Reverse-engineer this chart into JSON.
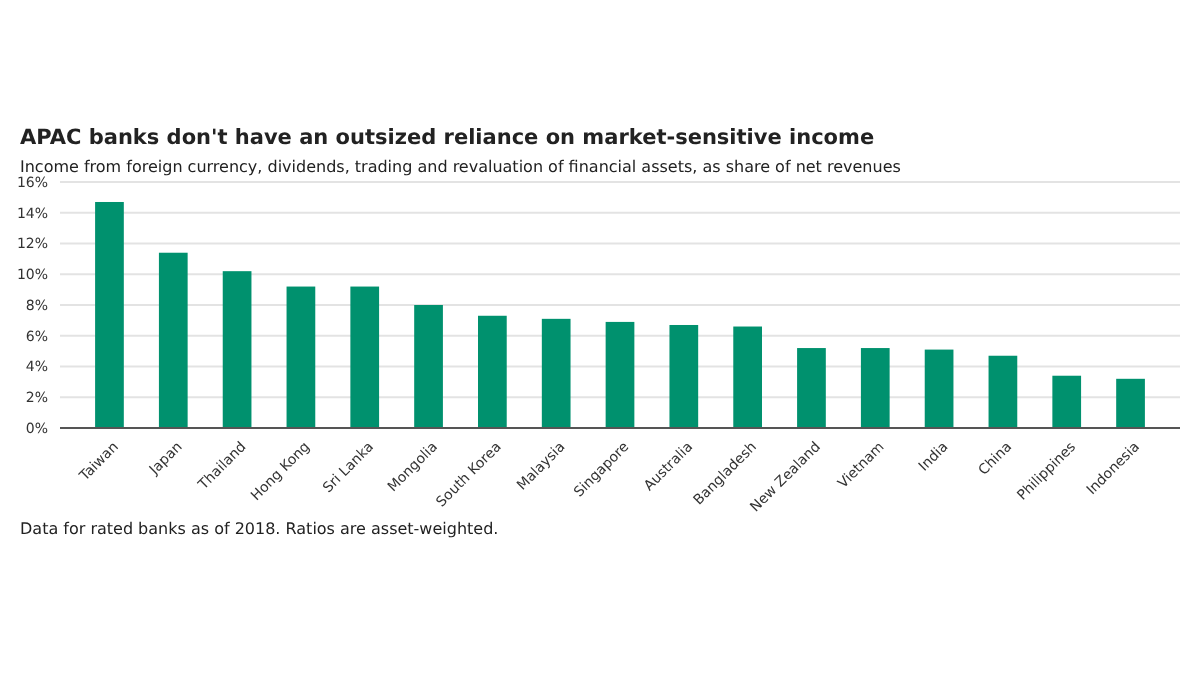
{
  "chart_data": {
    "type": "bar",
    "title": "APAC banks don't have an outsized reliance on market-sensitive income",
    "subtitle": "Income from foreign currency, dividends, trading and revaluation of financial assets, as share of net revenues",
    "categories": [
      "Taiwan",
      "Japan",
      "Thailand",
      "Hong Kong",
      "Sri Lanka",
      "Mongolia",
      "South Korea",
      "Malaysia",
      "Singapore",
      "Australia",
      "Bangladesh",
      "New Zealand",
      "Vietnam",
      "India",
      "China",
      "Philippines",
      "Indonesia"
    ],
    "values": [
      14.7,
      11.4,
      10.2,
      9.2,
      9.2,
      8.0,
      7.3,
      7.1,
      6.9,
      6.7,
      6.6,
      5.2,
      5.2,
      5.1,
      4.7,
      3.4,
      3.2
    ],
    "color": "#00916e",
    "ylim": [
      0,
      16
    ],
    "yticks": [
      {
        "value": 0,
        "label": "0%"
      },
      {
        "value": 2,
        "label": "2%"
      },
      {
        "value": 4,
        "label": "4%"
      },
      {
        "value": 6,
        "label": "6%"
      },
      {
        "value": 8,
        "label": "8%"
      },
      {
        "value": 10,
        "label": "10%"
      },
      {
        "value": 12,
        "label": "12%"
      },
      {
        "value": 14,
        "label": "14%"
      },
      {
        "value": 16,
        "label": "16%"
      }
    ],
    "grid": "y",
    "annotations": [
      "Data for rated banks as of 2018. Ratios are asset-weighted."
    ]
  }
}
